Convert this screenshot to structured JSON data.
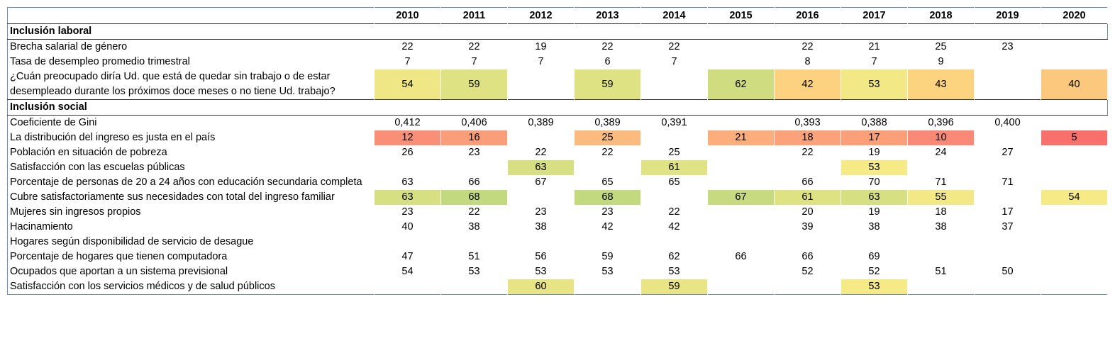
{
  "header": {
    "years": [
      2010,
      2011,
      2012,
      2013,
      2014,
      2015,
      2016,
      2017,
      2018,
      2019,
      2020
    ]
  },
  "sections": [
    {
      "title": "Inclusión laboral",
      "rows": [
        {
          "label": "Brecha salarial de género",
          "values": [
            22,
            22,
            19,
            22,
            22,
            null,
            22,
            21,
            25,
            23,
            null
          ]
        },
        {
          "label": "Tasa de desempleo promedio trimestral",
          "values": [
            7,
            7,
            7,
            6,
            7,
            null,
            8,
            7,
            9,
            null,
            null
          ]
        },
        {
          "label": "¿Cuán preocupado diría Ud. que está de quedar sin trabajo o de estar desempleado durante los próximos doce meses o no tiene Ud. trabajo?",
          "values": [
            54,
            59,
            null,
            59,
            null,
            62,
            42,
            53,
            43,
            null,
            40
          ],
          "colors": [
            "#efe686",
            "#dee283",
            null,
            "#dee283",
            null,
            "#cfdd80",
            "#fcd17f",
            "#f3e886",
            "#fcd480",
            null,
            "#fbc87d"
          ]
        }
      ]
    },
    {
      "title": "Inclusión social",
      "rows": [
        {
          "label": "Coeficiente de Gini",
          "values": [
            "0,412",
            "0,406",
            "0,389",
            "0,389",
            "0,391",
            null,
            "0,393",
            "0,388",
            "0,396",
            "0,400",
            null
          ]
        },
        {
          "label": "La distribución del ingreso es justa en el país",
          "values": [
            12,
            16,
            null,
            25,
            null,
            21,
            18,
            17,
            10,
            null,
            5
          ],
          "colors": [
            "#f98f77",
            "#fa9d79",
            null,
            "#fcbb7e",
            null,
            "#fbad7b",
            "#fba27a",
            "#fb9f79",
            "#f88976",
            null,
            "#f8706c"
          ]
        },
        {
          "label": "Población en situación de pobreza",
          "values": [
            26,
            23,
            22,
            22,
            25,
            null,
            22,
            19,
            24,
            27,
            null
          ]
        },
        {
          "label": "Satisfacción con las escuelas públicas",
          "values": [
            null,
            null,
            63,
            null,
            61,
            null,
            null,
            53,
            null,
            null,
            null
          ],
          "colors": [
            null,
            null,
            "#d6df82",
            null,
            "#e0e383",
            null,
            null,
            "#f6ea87",
            null,
            null,
            null
          ]
        },
        {
          "label": "Porcentaje de personas de 20 a 24 años con educación secundaria completa",
          "values": [
            63,
            66,
            67,
            65,
            65,
            null,
            66,
            70,
            71,
            71,
            null
          ]
        },
        {
          "label": "Cubre satisfactoriamente sus necesidades con total del ingreso familiar",
          "values": [
            63,
            68,
            null,
            68,
            null,
            67,
            61,
            63,
            55,
            null,
            54
          ],
          "colors": [
            "#d6df82",
            "#c3d980",
            null,
            "#c3d980",
            null,
            "#c7da80",
            "#dee283",
            "#d6df82",
            "#f2e886",
            null,
            "#f6ea87"
          ]
        },
        {
          "label": "Mujeres sin ingresos propios",
          "values": [
            23,
            22,
            23,
            23,
            22,
            null,
            20,
            19,
            18,
            17,
            null
          ]
        },
        {
          "label": "Hacinamiento",
          "values": [
            40,
            38,
            38,
            42,
            42,
            null,
            39,
            38,
            38,
            37,
            null
          ]
        },
        {
          "label": "Hogares según disponibilidad de servicio de desague",
          "values": [
            null,
            null,
            null,
            null,
            null,
            null,
            null,
            null,
            null,
            null,
            null
          ]
        },
        {
          "label": "Porcentaje de hogares que tienen computadora",
          "values": [
            47,
            51,
            56,
            59,
            62,
            66,
            66,
            69,
            null,
            null,
            null
          ]
        },
        {
          "label": "Ocupados que aportan a un sistema previsional",
          "values": [
            54,
            53,
            53,
            53,
            53,
            null,
            52,
            52,
            51,
            50,
            null
          ]
        },
        {
          "label": "Satisfacción con los servicios médicos y de salud públicos",
          "values": [
            null,
            null,
            60,
            null,
            59,
            null,
            null,
            53,
            null,
            null,
            null
          ],
          "colors": [
            null,
            null,
            "#e6e484",
            null,
            "#e9e585",
            null,
            null,
            "#f6ea87",
            null,
            null,
            null
          ]
        }
      ]
    }
  ]
}
